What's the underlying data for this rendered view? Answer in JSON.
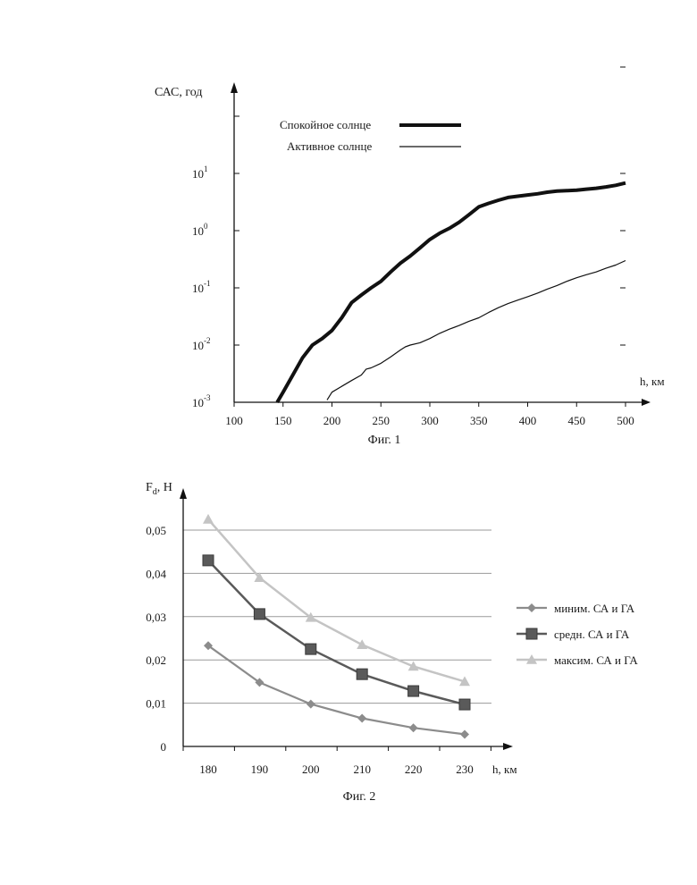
{
  "chart_data": [
    {
      "type": "line",
      "caption": "Фиг. 1",
      "ylabel": "САС, год",
      "xlabel": "h, км",
      "yscale": "log",
      "xlim": [
        100,
        500
      ],
      "ylim": [
        0.001,
        100
      ],
      "xticks": [
        100,
        150,
        200,
        250,
        300,
        350,
        400,
        450,
        500
      ],
      "yticks": [
        {
          "value": 0.001,
          "base": "10",
          "exp": "-3"
        },
        {
          "value": 0.01,
          "base": "10",
          "exp": "-2"
        },
        {
          "value": 0.1,
          "base": "10",
          "exp": "-1"
        },
        {
          "value": 1,
          "base": "10",
          "exp": "0"
        },
        {
          "value": 10,
          "base": "10",
          "exp": "1"
        }
      ],
      "legend_position": "top-left",
      "series": [
        {
          "name": "Спокойное солнце",
          "color": "#111111",
          "x": [
            144,
            150,
            160,
            170,
            180,
            190,
            200,
            210,
            220,
            230,
            240,
            250,
            260,
            270,
            280,
            290,
            300,
            310,
            320,
            330,
            340,
            350,
            360,
            370,
            380,
            390,
            400,
            410,
            420,
            430,
            440,
            450,
            460,
            470,
            480,
            490,
            500
          ],
          "y": [
            0.001,
            0.0015,
            0.003,
            0.006,
            0.01,
            0.013,
            0.018,
            0.03,
            0.055,
            0.075,
            0.1,
            0.13,
            0.19,
            0.27,
            0.36,
            0.5,
            0.7,
            0.9,
            1.1,
            1.4,
            1.9,
            2.6,
            3.0,
            3.4,
            3.8,
            4.0,
            4.2,
            4.4,
            4.7,
            4.9,
            5.0,
            5.1,
            5.3,
            5.5,
            5.8,
            6.2,
            6.8
          ]
        },
        {
          "name": "Активное солнце",
          "color": "#111111",
          "x": [
            195,
            200,
            210,
            220,
            230,
            235,
            240,
            250,
            260,
            270,
            275,
            280,
            290,
            300,
            310,
            320,
            330,
            340,
            350,
            360,
            370,
            380,
            390,
            400,
            410,
            420,
            430,
            440,
            450,
            460,
            470,
            480,
            490,
            500
          ],
          "y": [
            0.0011,
            0.0015,
            0.0019,
            0.0024,
            0.003,
            0.0038,
            0.004,
            0.0048,
            0.0062,
            0.0082,
            0.0093,
            0.01,
            0.011,
            0.013,
            0.016,
            0.019,
            0.022,
            0.026,
            0.03,
            0.037,
            0.045,
            0.053,
            0.061,
            0.07,
            0.081,
            0.095,
            0.11,
            0.13,
            0.15,
            0.17,
            0.19,
            0.22,
            0.25,
            0.3
          ]
        }
      ]
    },
    {
      "type": "line",
      "caption": "Фиг. 2",
      "ylabel_main": "F",
      "ylabel_sub": "d",
      "ylabel_unit": ", Н",
      "xlabel": "h, км",
      "x": [
        180,
        190,
        200,
        210,
        220,
        230
      ],
      "xlim": [
        175,
        235
      ],
      "ylim": [
        0,
        0.055
      ],
      "yticks": [
        {
          "value": 0,
          "label": "0"
        },
        {
          "value": 0.01,
          "label": "0,01"
        },
        {
          "value": 0.02,
          "label": "0,02"
        },
        {
          "value": 0.03,
          "label": "0,03"
        },
        {
          "value": 0.04,
          "label": "0,04"
        },
        {
          "value": 0.05,
          "label": "0,05"
        }
      ],
      "xtick_labels": [
        "180",
        "190",
        "200",
        "210",
        "220",
        "230"
      ],
      "grid": true,
      "legend_position": "right",
      "series": [
        {
          "name": "миним. СА и ГА",
          "marker": "diamond",
          "color": "#8c8c8c",
          "values": [
            0.0233,
            0.0148,
            0.0098,
            0.0065,
            0.0043,
            0.0028
          ]
        },
        {
          "name": "средн. СА и ГА",
          "marker": "square",
          "color": "#5a5a5a",
          "values": [
            0.043,
            0.0306,
            0.0225,
            0.0167,
            0.0128,
            0.0097
          ]
        },
        {
          "name": "максим. СА и ГА",
          "marker": "triangle",
          "color": "#c4c4c4",
          "values": [
            0.0525,
            0.039,
            0.0298,
            0.0235,
            0.0185,
            0.015
          ]
        }
      ]
    }
  ]
}
